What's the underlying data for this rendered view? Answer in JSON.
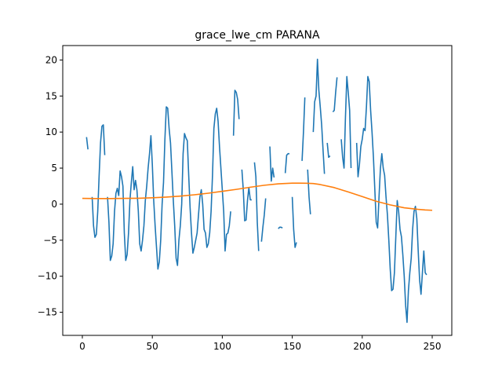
{
  "chart_data": {
    "type": "line",
    "title": "grace_lwe_cm PARANA",
    "xlabel": "",
    "ylabel": "",
    "xlim": [
      -14,
      264
    ],
    "ylim": [
      -18.2,
      22.0
    ],
    "xticks": [
      0,
      50,
      100,
      150,
      200,
      250
    ],
    "yticks": [
      -15,
      -10,
      -5,
      0,
      5,
      10,
      15,
      20
    ],
    "grid": false,
    "legend": "none",
    "series": [
      {
        "color": "#1f77b4",
        "points": [
          [
            3,
            9.3
          ],
          [
            4,
            7.6
          ],
          null,
          [
            7,
            1.0
          ],
          [
            8,
            -3.0
          ],
          [
            9,
            -4.6
          ],
          [
            10,
            -4.2
          ],
          [
            11,
            -1.0
          ],
          [
            12,
            4.0
          ],
          [
            13,
            8.5
          ],
          [
            14,
            10.8
          ],
          [
            15,
            11.0
          ],
          [
            16,
            6.8
          ],
          null,
          [
            18,
            1.0
          ],
          [
            19,
            -2.5
          ],
          [
            20,
            -7.8
          ],
          [
            21,
            -7.2
          ],
          [
            22,
            -5.5
          ],
          [
            23,
            -1.0
          ],
          [
            24,
            1.5
          ],
          [
            25,
            2.2
          ],
          [
            26,
            1.2
          ],
          [
            27,
            4.6
          ],
          [
            28,
            3.8
          ],
          [
            29,
            2.5
          ],
          [
            30,
            -4.0
          ],
          [
            31,
            -7.8
          ],
          [
            32,
            -7.0
          ],
          [
            33,
            -4.0
          ],
          [
            34,
            0.5
          ],
          [
            35,
            3.0
          ],
          [
            36,
            5.2
          ],
          [
            37,
            2.0
          ],
          [
            38,
            3.3
          ],
          [
            39,
            2.0
          ],
          [
            40,
            -1.0
          ],
          [
            41,
            -5.5
          ],
          [
            42,
            -6.5
          ],
          [
            43,
            -5.0
          ],
          [
            44,
            -3.0
          ],
          [
            45,
            0.5
          ],
          [
            46,
            2.5
          ],
          [
            47,
            5.0
          ],
          [
            48,
            7.0
          ],
          [
            49,
            9.5
          ],
          [
            50,
            5.5
          ],
          [
            51,
            0.5
          ],
          [
            52,
            -3.0
          ],
          [
            53,
            -6.0
          ],
          [
            54,
            -9.0
          ],
          [
            55,
            -8.0
          ],
          [
            56,
            -5.0
          ],
          [
            57,
            0.0
          ],
          [
            58,
            3.0
          ],
          [
            59,
            9.0
          ],
          [
            60,
            13.5
          ],
          [
            61,
            13.3
          ],
          [
            62,
            10.5
          ],
          [
            63,
            8.5
          ],
          [
            64,
            4.5
          ],
          [
            65,
            0.5
          ],
          [
            66,
            -3.0
          ],
          [
            67,
            -7.5
          ],
          [
            68,
            -8.5
          ],
          [
            69,
            -5.0
          ],
          [
            70,
            -3.0
          ],
          [
            71,
            0.0
          ],
          [
            72,
            7.0
          ],
          [
            73,
            9.8
          ],
          [
            74,
            9.2
          ],
          [
            75,
            8.8
          ],
          [
            76,
            4.0
          ],
          [
            77,
            -0.5
          ],
          [
            78,
            -4.0
          ],
          [
            79,
            -6.8
          ],
          [
            80,
            -6.0
          ],
          [
            81,
            -5.0
          ],
          [
            82,
            -4.0
          ],
          [
            83,
            -1.5
          ],
          [
            84,
            1.0
          ],
          [
            85,
            2.0
          ],
          [
            86,
            0.0
          ],
          [
            87,
            -3.5
          ],
          [
            88,
            -4.0
          ],
          [
            89,
            -6.0
          ],
          [
            90,
            -5.5
          ],
          [
            91,
            -4.0
          ],
          [
            92,
            -1.0
          ],
          [
            93,
            4.0
          ],
          [
            94,
            10.5
          ],
          [
            95,
            12.5
          ],
          [
            96,
            13.3
          ],
          [
            97,
            11.5
          ],
          [
            98,
            8.0
          ],
          [
            99,
            5.0
          ],
          [
            100,
            2.0
          ],
          [
            101,
            -1.0
          ],
          [
            102,
            -6.5
          ],
          [
            103,
            -4.2
          ],
          [
            104,
            -4.0
          ],
          [
            105,
            -3.0
          ],
          [
            106,
            -1.0
          ],
          null,
          [
            108,
            9.5
          ],
          [
            109,
            15.8
          ],
          [
            110,
            15.5
          ],
          [
            111,
            14.5
          ],
          [
            112,
            11.8
          ],
          null,
          [
            114,
            4.8
          ],
          [
            115,
            2.0
          ],
          [
            116,
            -2.3
          ],
          [
            117,
            -2.2
          ],
          [
            118,
            0.5
          ],
          [
            119,
            2.3
          ],
          [
            120,
            0.6
          ],
          [
            121,
            0.6
          ],
          null,
          [
            123,
            5.8
          ],
          [
            124,
            3.8
          ],
          [
            125,
            -2.5
          ],
          [
            126,
            -6.5
          ],
          null,
          [
            128,
            -5.2
          ],
          [
            129,
            -3.2
          ],
          [
            130,
            -1.5
          ],
          [
            131,
            0.8
          ],
          null,
          [
            134,
            8.0
          ],
          [
            135,
            3.2
          ],
          [
            136,
            5.0
          ],
          [
            137,
            3.7
          ],
          null,
          [
            140,
            -3.4
          ],
          [
            141,
            -3.2
          ],
          [
            142,
            -3.2
          ],
          [
            143,
            -3.3
          ],
          null,
          [
            145,
            4.3
          ],
          [
            146,
            6.8
          ],
          [
            147,
            7.0
          ],
          [
            148,
            7.0
          ],
          null,
          [
            150,
            1.0
          ],
          [
            151,
            -3.5
          ],
          [
            152,
            -6.0
          ],
          [
            153,
            -5.3
          ],
          null,
          [
            157,
            6.0
          ],
          [
            158,
            10.0
          ],
          [
            159,
            14.8
          ],
          null,
          [
            161,
            4.8
          ],
          [
            162,
            1.0
          ],
          [
            163,
            -1.4
          ],
          null,
          [
            165,
            10.0
          ],
          [
            166,
            14.2
          ],
          [
            167,
            15.0
          ],
          [
            168,
            20.1
          ],
          [
            169,
            15.8
          ],
          [
            170,
            13.5
          ],
          [
            171,
            11.0
          ],
          [
            172,
            7.5
          ],
          [
            173,
            4.2
          ],
          null,
          [
            175,
            8.5
          ],
          [
            176,
            6.5
          ],
          [
            177,
            6.7
          ],
          null,
          [
            179,
            12.8
          ],
          [
            180,
            13.0
          ],
          [
            181,
            15.5
          ],
          [
            182,
            17.6
          ],
          null,
          [
            185,
            9.0
          ],
          [
            186,
            6.5
          ],
          [
            187,
            5.0
          ],
          [
            188,
            12.0
          ],
          [
            189,
            17.7
          ],
          [
            190,
            15.5
          ],
          [
            191,
            13.0
          ],
          [
            192,
            5.0
          ],
          null,
          [
            196,
            8.5
          ],
          [
            197,
            3.8
          ],
          [
            198,
            5.5
          ],
          [
            199,
            8.0
          ],
          [
            200,
            9.0
          ],
          [
            201,
            10.5
          ],
          [
            202,
            10.2
          ],
          [
            203,
            13.5
          ],
          [
            204,
            17.7
          ],
          [
            205,
            17.0
          ],
          [
            206,
            13.0
          ],
          [
            207,
            10.0
          ],
          [
            208,
            6.5
          ],
          [
            209,
            2.0
          ],
          [
            210,
            -2.5
          ],
          [
            211,
            -3.3
          ],
          [
            212,
            1.0
          ],
          [
            213,
            5.0
          ],
          [
            214,
            7.0
          ],
          [
            215,
            5.0
          ],
          [
            216,
            4.0
          ],
          [
            217,
            1.0
          ],
          [
            218,
            -1.5
          ],
          [
            219,
            -5.0
          ],
          [
            220,
            -9.0
          ],
          [
            221,
            -12.0
          ],
          [
            222,
            -11.8
          ],
          [
            223,
            -9.5
          ],
          [
            224,
            -4.5
          ],
          [
            225,
            0.5
          ],
          [
            226,
            -1.0
          ],
          [
            227,
            -3.5
          ],
          [
            228,
            -4.5
          ],
          [
            229,
            -7.0
          ],
          [
            230,
            -10.0
          ],
          [
            231,
            -14.0
          ],
          [
            232,
            -16.4
          ],
          [
            233,
            -12.0
          ],
          [
            234,
            -9.5
          ],
          [
            235,
            -7.5
          ],
          [
            236,
            -3.5
          ],
          [
            237,
            -1.0
          ],
          [
            238,
            -0.3
          ],
          [
            239,
            -2.0
          ],
          [
            240,
            -6.5
          ],
          [
            241,
            -10.5
          ],
          [
            242,
            -12.5
          ],
          [
            243,
            -9.5
          ],
          [
            244,
            -6.5
          ],
          [
            245,
            -9.5
          ],
          [
            246,
            -9.8
          ]
        ]
      },
      {
        "color": "#ff7f0e",
        "points": [
          [
            0,
            0.8
          ],
          [
            10,
            0.78
          ],
          [
            20,
            0.78
          ],
          [
            30,
            0.8
          ],
          [
            40,
            0.82
          ],
          [
            50,
            0.88
          ],
          [
            60,
            0.98
          ],
          [
            70,
            1.12
          ],
          [
            80,
            1.3
          ],
          [
            90,
            1.52
          ],
          [
            100,
            1.78
          ],
          [
            110,
            2.05
          ],
          [
            120,
            2.35
          ],
          [
            130,
            2.62
          ],
          [
            140,
            2.82
          ],
          [
            150,
            2.92
          ],
          [
            160,
            2.9
          ],
          [
            165,
            2.86
          ],
          [
            170,
            2.72
          ],
          [
            180,
            2.3
          ],
          [
            190,
            1.7
          ],
          [
            200,
            1.05
          ],
          [
            210,
            0.4
          ],
          [
            220,
            -0.1
          ],
          [
            230,
            -0.5
          ],
          [
            240,
            -0.72
          ],
          [
            245,
            -0.8
          ],
          [
            250,
            -0.85
          ]
        ]
      }
    ]
  }
}
